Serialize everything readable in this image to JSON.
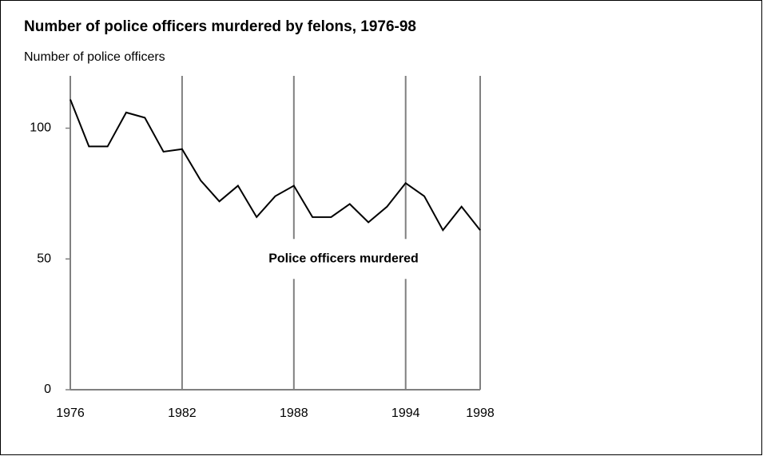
{
  "chart_data": {
    "type": "line",
    "title": "Number of police officers murdered by felons, 1976-98",
    "y_axis_label": "Number of police officers",
    "annotation": "Police officers murdered",
    "x": [
      1976,
      1977,
      1978,
      1979,
      1980,
      1981,
      1982,
      1983,
      1984,
      1985,
      1986,
      1987,
      1988,
      1989,
      1990,
      1991,
      1992,
      1993,
      1994,
      1995,
      1996,
      1997,
      1998
    ],
    "values": [
      111,
      93,
      93,
      106,
      104,
      91,
      92,
      80,
      72,
      78,
      66,
      74,
      78,
      66,
      66,
      71,
      64,
      70,
      79,
      74,
      61,
      70,
      61
    ],
    "color": "#000000",
    "xlim": [
      1976,
      1998
    ],
    "xticks": [
      1976,
      1982,
      1988,
      1994,
      1998
    ],
    "ylim": [
      0,
      120
    ],
    "yticks": [
      0,
      50,
      100
    ],
    "grid": true
  }
}
